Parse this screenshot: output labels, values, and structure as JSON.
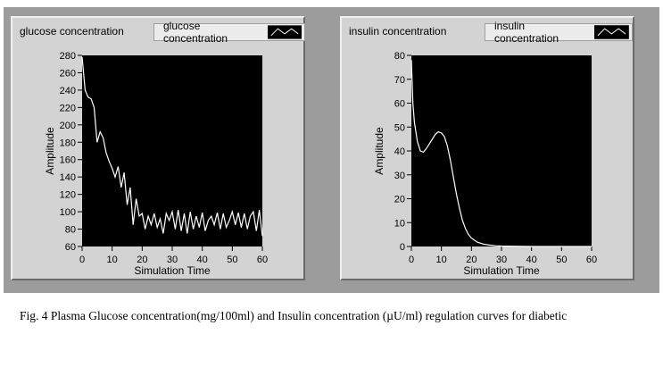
{
  "caption": "Fig. 4 Plasma Glucose concentration(mg/100ml) and Insulin concentration (µU/ml) regulation curves for diabetic",
  "colors": {
    "plot_bg": "#000000",
    "line": "#ffffff",
    "panel": "#d3d3d3",
    "frame": "#9c9c9c"
  },
  "chart_data": [
    {
      "type": "line",
      "title": "glucose concentration",
      "legend": "glucose concentration",
      "xlabel": "Simulation Time",
      "ylabel": "Amplitude",
      "xlim": [
        0,
        60
      ],
      "ylim": [
        60,
        280
      ],
      "xticks": [
        0,
        10,
        20,
        30,
        40,
        50,
        60
      ],
      "yticks": [
        60,
        80,
        100,
        120,
        140,
        160,
        180,
        200,
        220,
        240,
        260,
        280
      ],
      "grid": false,
      "series": [
        {
          "name": "glucose concentration",
          "x": [
            0,
            1,
            2,
            3,
            4,
            5,
            6,
            7,
            8,
            9,
            10,
            11,
            12,
            13,
            14,
            15,
            16,
            17,
            18,
            19,
            20,
            21,
            22,
            23,
            24,
            25,
            26,
            27,
            28,
            29,
            30,
            31,
            32,
            33,
            34,
            35,
            36,
            37,
            38,
            39,
            40,
            41,
            42,
            43,
            44,
            45,
            46,
            47,
            48,
            49,
            50,
            51,
            52,
            53,
            54,
            55,
            56,
            57,
            58,
            59,
            60
          ],
          "y": [
            278,
            240,
            232,
            230,
            220,
            180,
            192,
            185,
            168,
            158,
            150,
            140,
            152,
            128,
            145,
            108,
            128,
            85,
            115,
            95,
            98,
            80,
            95,
            85,
            98,
            82,
            92,
            75,
            98,
            90,
            100,
            80,
            102,
            78,
            98,
            75,
            100,
            80,
            95,
            82,
            99,
            78,
            90,
            95,
            85,
            99,
            80,
            98,
            82,
            90,
            100,
            85,
            99,
            82,
            98,
            80,
            95,
            100,
            78,
            102,
            72
          ]
        }
      ]
    },
    {
      "type": "line",
      "title": "insulin concentration",
      "legend": "insulin concentration",
      "xlabel": "Simulation Time",
      "ylabel": "Amplitude",
      "xlim": [
        0,
        60
      ],
      "ylim": [
        0,
        80
      ],
      "xticks": [
        0,
        10,
        20,
        30,
        40,
        50,
        60
      ],
      "yticks": [
        0,
        10,
        20,
        30,
        40,
        50,
        60,
        70,
        80
      ],
      "grid": false,
      "series": [
        {
          "name": "insulin concentration",
          "x": [
            0,
            0.5,
            1,
            2,
            3,
            4,
            5,
            6,
            7,
            8,
            9,
            10,
            11,
            12,
            13,
            14,
            15,
            16,
            17,
            18,
            19,
            20,
            22,
            24,
            26,
            28,
            30,
            35,
            40,
            50,
            60
          ],
          "y": [
            78,
            60,
            52,
            44,
            40,
            39.5,
            41,
            43,
            45,
            47,
            48,
            47.5,
            46,
            42,
            36,
            29,
            22,
            16,
            11,
            7.5,
            5,
            3.5,
            1.8,
            1,
            0.6,
            0.3,
            0.2,
            0.1,
            0,
            0,
            0
          ]
        }
      ]
    }
  ]
}
